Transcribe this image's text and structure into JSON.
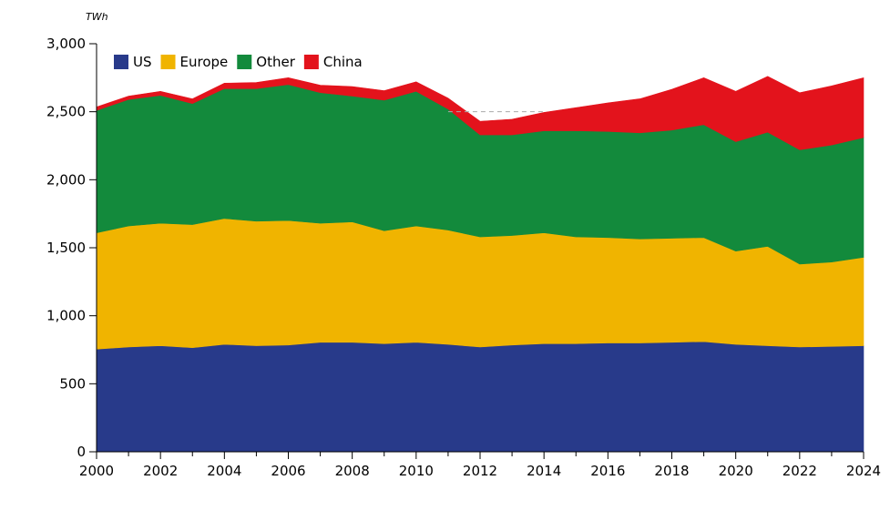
{
  "chart_data": {
    "type": "area",
    "stacked": true,
    "unit": "TWh",
    "title": "",
    "xlabel": "",
    "ylabel": "",
    "ylim": [
      0,
      3000
    ],
    "yticks": [
      0,
      500,
      1000,
      1500,
      2000,
      2500,
      3000
    ],
    "ytick_labels": [
      "0",
      "500",
      "1,000",
      "1,500",
      "2,000",
      "2,500",
      "3,000"
    ],
    "xlim": [
      2000,
      2024
    ],
    "xticks": [
      2000,
      2002,
      2004,
      2006,
      2008,
      2010,
      2012,
      2014,
      2016,
      2018,
      2020,
      2022,
      2024
    ],
    "grid": false,
    "legend_position": "top-left",
    "x": [
      2000,
      2001,
      2002,
      2003,
      2004,
      2005,
      2006,
      2007,
      2008,
      2009,
      2010,
      2011,
      2012,
      2013,
      2014,
      2015,
      2016,
      2017,
      2018,
      2019,
      2020,
      2021,
      2022,
      2023,
      2024
    ],
    "series": [
      {
        "name": "US",
        "color": "#283a8a",
        "values": [
          755,
          770,
          780,
          765,
          790,
          780,
          785,
          805,
          805,
          795,
          805,
          790,
          770,
          785,
          795,
          795,
          800,
          800,
          805,
          810,
          790,
          780,
          770,
          775,
          780
        ]
      },
      {
        "name": "Europe",
        "color": "#f0b400",
        "values": [
          855,
          890,
          900,
          905,
          925,
          915,
          915,
          875,
          885,
          830,
          855,
          840,
          810,
          805,
          815,
          785,
          775,
          765,
          765,
          765,
          685,
          730,
          610,
          620,
          650
        ]
      },
      {
        "name": "Other",
        "color": "#138a3c",
        "values": [
          900,
          930,
          940,
          890,
          955,
          975,
          1000,
          960,
          925,
          960,
          990,
          890,
          750,
          740,
          750,
          780,
          780,
          780,
          795,
          830,
          805,
          840,
          840,
          860,
          880
        ]
      },
      {
        "name": "China",
        "color": "#e3131c",
        "values": [
          25,
          25,
          30,
          35,
          40,
          45,
          50,
          55,
          70,
          70,
          70,
          80,
          100,
          115,
          135,
          170,
          210,
          250,
          300,
          345,
          370,
          410,
          420,
          435,
          440
        ]
      }
    ],
    "reference_line": {
      "value": 2500,
      "from": 2011,
      "to": 2014,
      "style": "dashed",
      "color": "#aaaaaa"
    }
  }
}
